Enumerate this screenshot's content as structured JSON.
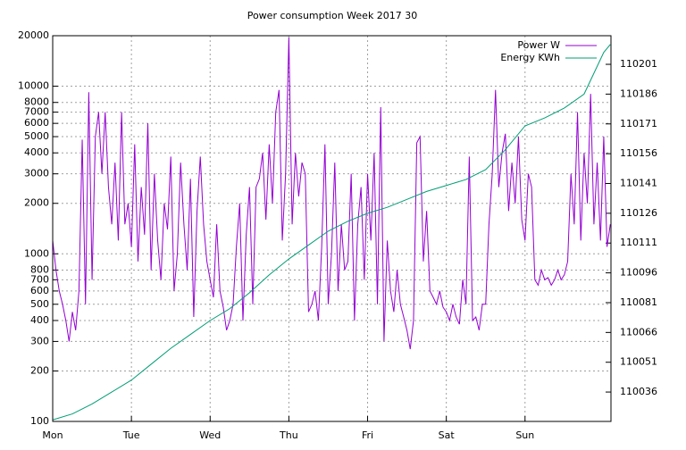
{
  "chart_data": {
    "type": "line",
    "title": "Power consumption Week 2017 30",
    "log_y": true,
    "grid": true,
    "legend": "top-right",
    "xlim": [
      0,
      170.2
    ],
    "xticks": [
      {
        "value": 0,
        "label": "Mon"
      },
      {
        "value": 24,
        "label": "Tue"
      },
      {
        "value": 48,
        "label": "Wed"
      },
      {
        "value": 72,
        "label": "Thu"
      },
      {
        "value": 96,
        "label": "Fri"
      },
      {
        "value": 120,
        "label": "Sat"
      },
      {
        "value": 144,
        "label": "Sun"
      }
    ],
    "ylim": [
      100,
      20000
    ],
    "yticks": [
      100,
      200,
      300,
      400,
      500,
      600,
      700,
      800,
      1000,
      2000,
      3000,
      4000,
      5000,
      6000,
      7000,
      8000,
      10000,
      20000
    ],
    "y2lim": [
      110021.2,
      110215.4
    ],
    "y2ticks": [
      110036,
      110051,
      110066,
      110081,
      110096,
      110111,
      110126,
      110141,
      110156,
      110171,
      110186,
      110201
    ],
    "series": [
      {
        "name": "Power W",
        "color": "#9400d3",
        "x": [
          0,
          1,
          2,
          3,
          4,
          5,
          6,
          7,
          8,
          9,
          10,
          11,
          12,
          13,
          14,
          15,
          16,
          17,
          18,
          19,
          20,
          21,
          22,
          23,
          24,
          25,
          26,
          27,
          28,
          29,
          30,
          31,
          32,
          33,
          34,
          35,
          36,
          37,
          38,
          39,
          40,
          41,
          42,
          43,
          44,
          45,
          46,
          47,
          48,
          49,
          50,
          51,
          52,
          53,
          54,
          55,
          56,
          57,
          58,
          59,
          60,
          61,
          62,
          63,
          64,
          65,
          66,
          67,
          68,
          69,
          70,
          71,
          72,
          73,
          74,
          75,
          76,
          77,
          78,
          79,
          80,
          81,
          82,
          83,
          84,
          85,
          86,
          87,
          88,
          89,
          90,
          91,
          92,
          93,
          94,
          95,
          96,
          97,
          98,
          99,
          100,
          101,
          102,
          103,
          104,
          105,
          106,
          107,
          108,
          109,
          110,
          111,
          112,
          113,
          114,
          115,
          116,
          117,
          118,
          119,
          120,
          121,
          122,
          123,
          124,
          125,
          126,
          127,
          128,
          129,
          130,
          131,
          132,
          133,
          134,
          135,
          136,
          137,
          138,
          139,
          140,
          141,
          142,
          143,
          144,
          145,
          146,
          147,
          148,
          149,
          150,
          151,
          152,
          153,
          154,
          155,
          156,
          157,
          158,
          159,
          160,
          161,
          162,
          163,
          164,
          165,
          166,
          167,
          168,
          169,
          170
        ],
        "values": [
          1200,
          800,
          600,
          500,
          400,
          300,
          450,
          350,
          600,
          4800,
          500,
          9200,
          700,
          5000,
          7000,
          3000,
          7000,
          2500,
          1500,
          3500,
          1200,
          7000,
          1500,
          2000,
          1100,
          4500,
          900,
          2500,
          1300,
          6000,
          800,
          3000,
          1200,
          700,
          2000,
          1400,
          3800,
          600,
          1000,
          3500,
          1500,
          800,
          2800,
          420,
          1800,
          3800,
          1500,
          900,
          700,
          550,
          1500,
          600,
          480,
          350,
          400,
          500,
          1100,
          2000,
          400,
          1300,
          2500,
          500,
          2500,
          2800,
          4000,
          1600,
          4500,
          2000,
          7000,
          9500,
          1200,
          3000,
          19500,
          1500,
          4000,
          2200,
          3500,
          3000,
          450,
          500,
          600,
          400,
          1100,
          4500,
          500,
          1000,
          3500,
          600,
          1500,
          800,
          900,
          3000,
          400,
          1500,
          2500,
          700,
          3000,
          1200,
          4000,
          500,
          7500,
          300,
          1200,
          600,
          450,
          800,
          500,
          420,
          350,
          270,
          400,
          4600,
          5000,
          900,
          1800,
          600,
          550,
          500,
          600,
          480,
          450,
          400,
          500,
          420,
          380,
          700,
          500,
          3800,
          400,
          420,
          350,
          500,
          500,
          1500,
          3000,
          9500,
          2500,
          4000,
          5200,
          1800,
          3500,
          2000,
          5000,
          1600,
          1200,
          3000,
          2500,
          700,
          650,
          800,
          700,
          720,
          650,
          700,
          800,
          700,
          750,
          900,
          3000,
          1500,
          7000,
          1200,
          4000,
          2000,
          9000,
          1500,
          3500,
          1200,
          5000,
          1100,
          1500
        ]
      },
      {
        "name": "Energy KWh",
        "color": "#009e73",
        "axis": "y2",
        "x": [
          0,
          6,
          12,
          18,
          24,
          30,
          36,
          42,
          48,
          54,
          60,
          66,
          72,
          78,
          84,
          90,
          96,
          102,
          108,
          114,
          120,
          126,
          132,
          138,
          144,
          150,
          156,
          162,
          168,
          170
        ],
        "values": [
          110022,
          110025,
          110030,
          110036,
          110042,
          110050,
          110058,
          110065,
          110072,
          110078,
          110086,
          110095,
          110103,
          110110,
          110117,
          110122,
          110126,
          110129,
          110133,
          110137,
          110140,
          110143,
          110148,
          110158,
          110170,
          110174,
          110179,
          110186,
          110207,
          110211
        ]
      }
    ]
  }
}
